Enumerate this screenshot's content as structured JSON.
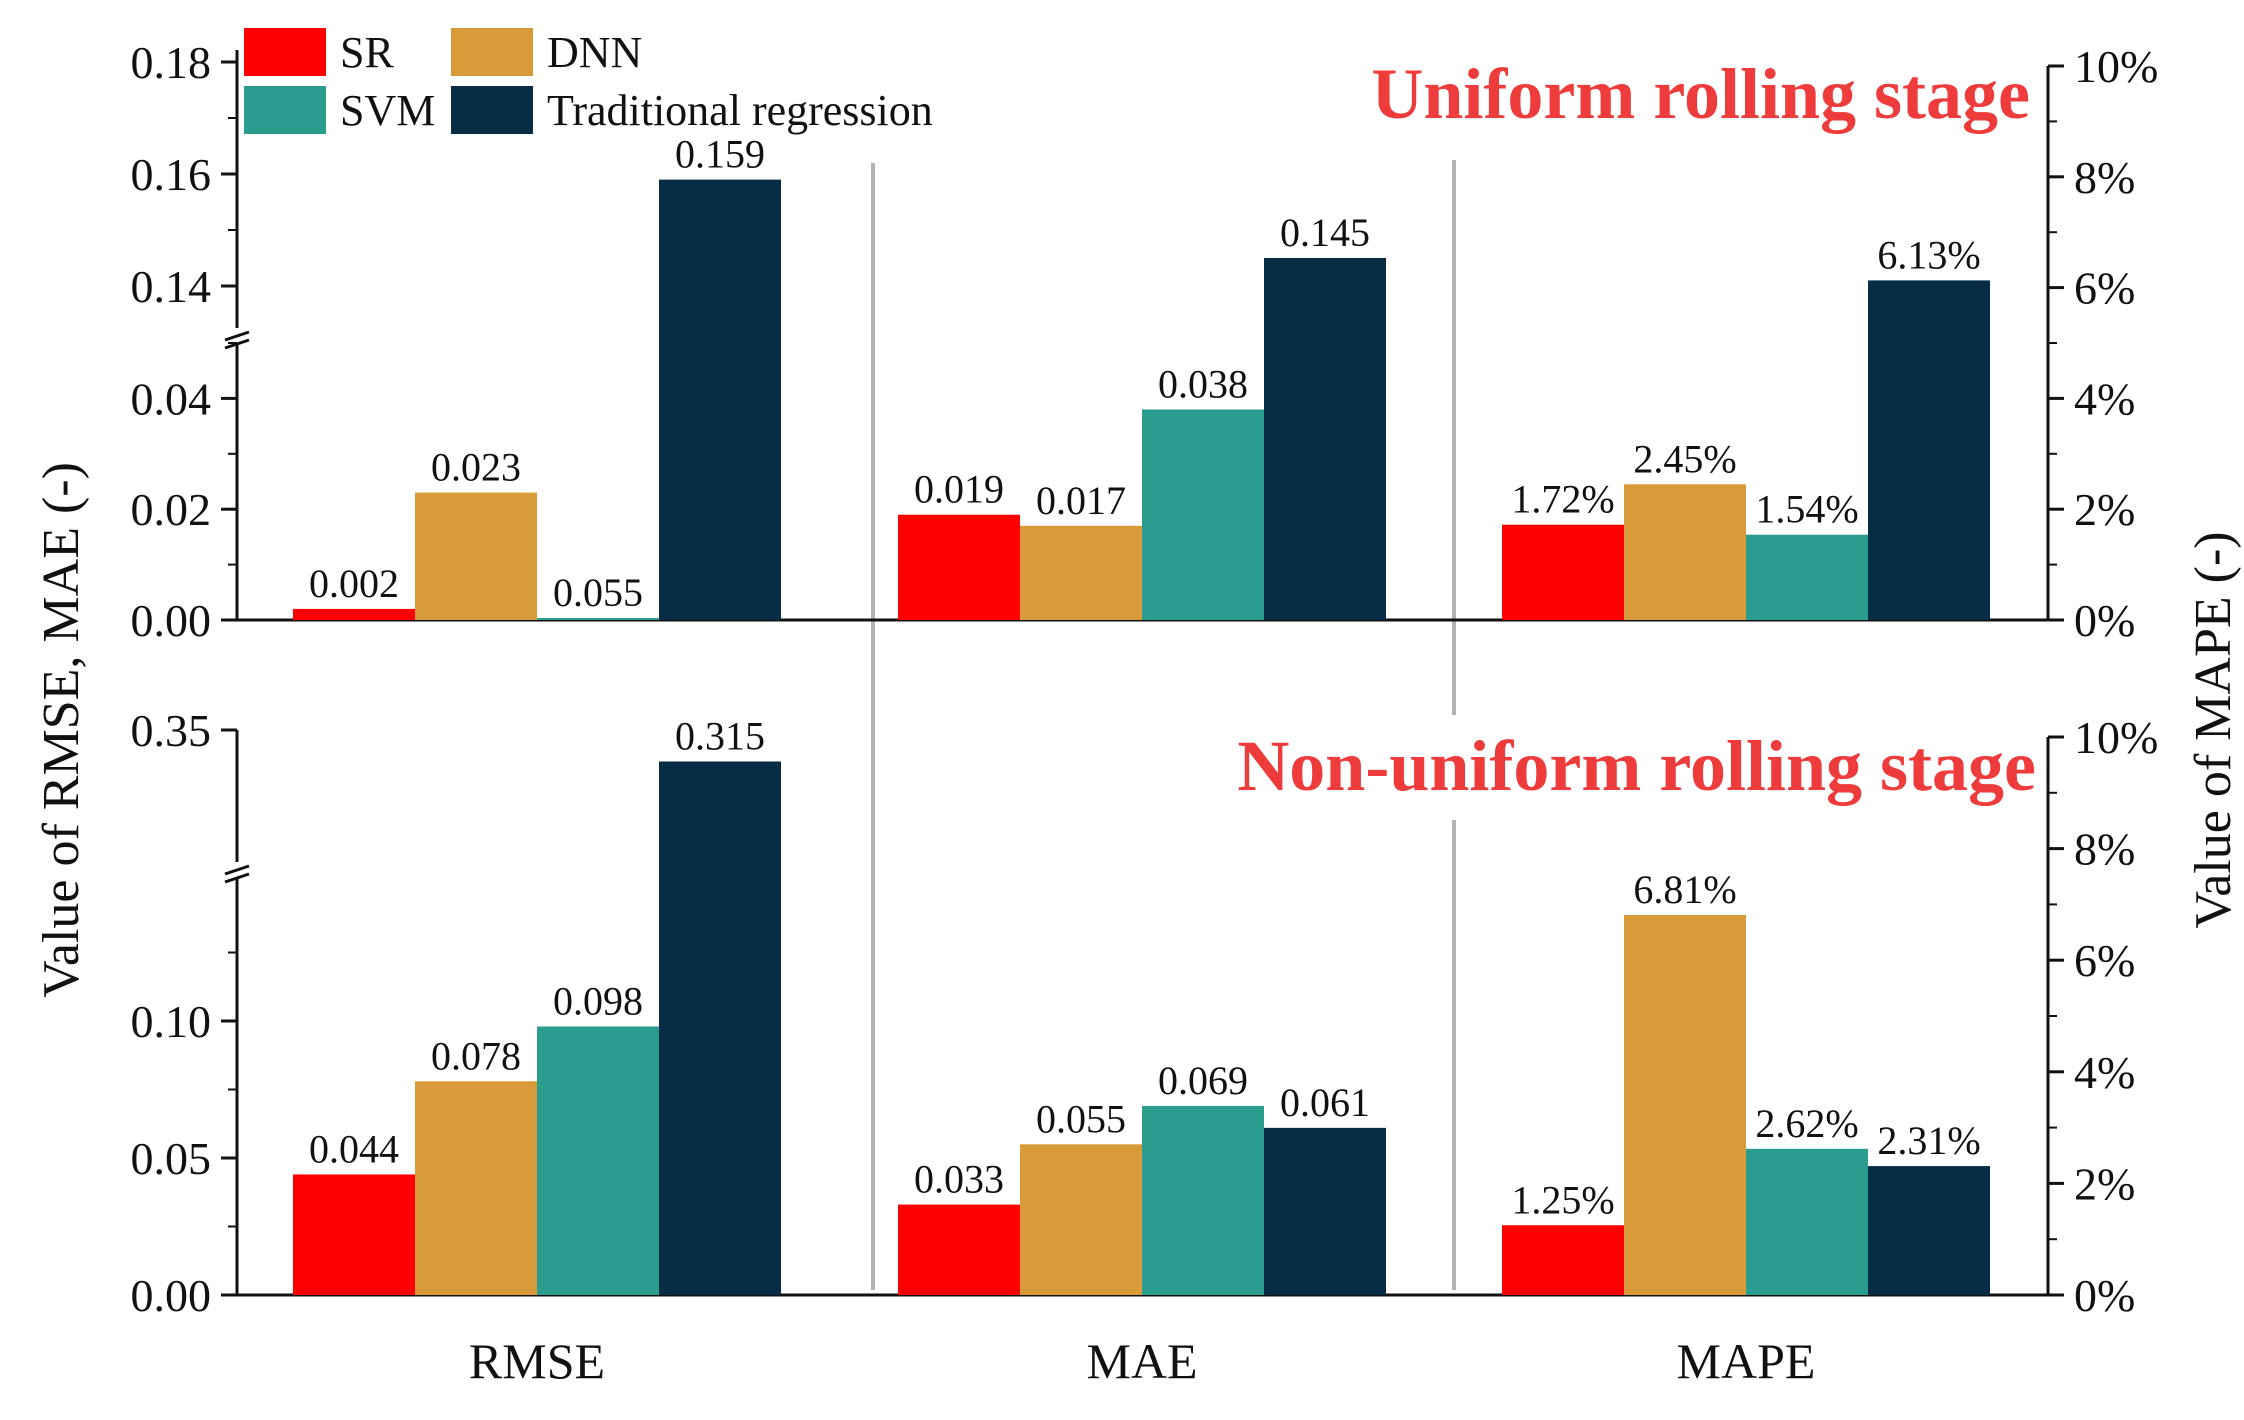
{
  "chart_data": [
    {
      "type": "bar",
      "panel": "top",
      "title": "Uniform rolling stage",
      "categories": [
        "RMSE",
        "MAE",
        "MAPE"
      ],
      "series": [
        {
          "name": "SR",
          "values": [
            0.002,
            0.019,
            1.72
          ]
        },
        {
          "name": "DNN",
          "values": [
            0.023,
            0.017,
            2.45
          ]
        },
        {
          "name": "SVM",
          "values": [
            0.055,
            0.038,
            1.54
          ]
        },
        {
          "name": "Traditional regression",
          "values": [
            0.159,
            0.145,
            6.13
          ]
        }
      ],
      "labels": [
        [
          "0.002",
          "0.019",
          "1.72%"
        ],
        [
          "0.023",
          "0.017",
          "2.45%"
        ],
        [
          "0.055",
          "0.038",
          "1.54%"
        ],
        [
          "0.159",
          "0.145",
          "6.13%"
        ]
      ],
      "left_axis": {
        "segments": [
          {
            "range": [
              0,
              0.05
            ],
            "ticks": [
              "0.00",
              "0.02",
              "0.04"
            ],
            "tick_values": [
              0,
              0.02,
              0.04
            ]
          },
          {
            "range": [
              0.13,
              0.18
            ],
            "ticks": [
              "0.14",
              "0.16",
              "0.18"
            ],
            "tick_values": [
              0.14,
              0.16,
              0.18
            ]
          }
        ],
        "break": true
      },
      "right_axis": {
        "range": [
          0,
          10
        ],
        "ticks": [
          "0%",
          "2%",
          "4%",
          "6%",
          "8%",
          "10%"
        ],
        "tick_values": [
          0,
          2,
          4,
          6,
          8,
          10
        ]
      }
    },
    {
      "type": "bar",
      "panel": "bottom",
      "title": "Non-uniform rolling stage",
      "categories": [
        "RMSE",
        "MAE",
        "MAPE"
      ],
      "series": [
        {
          "name": "SR",
          "values": [
            0.044,
            0.033,
            1.25
          ]
        },
        {
          "name": "DNN",
          "values": [
            0.078,
            0.055,
            6.81
          ]
        },
        {
          "name": "SVM",
          "values": [
            0.098,
            0.069,
            2.62
          ]
        },
        {
          "name": "Traditional regression",
          "values": [
            0.315,
            0.061,
            2.31
          ]
        }
      ],
      "labels": [
        [
          "0.044",
          "0.033",
          "1.25%"
        ],
        [
          "0.078",
          "0.055",
          "6.81%"
        ],
        [
          "0.098",
          "0.069",
          "2.62%"
        ],
        [
          "0.315",
          "0.061",
          "2.31%"
        ]
      ],
      "left_axis": {
        "segments": [
          {
            "range": [
              0,
              0.15
            ],
            "ticks": [
              "0.00",
              "0.05",
              "0.10"
            ],
            "tick_values": [
              0,
              0.05,
              0.1
            ]
          },
          {
            "range": [
              0.2,
              0.35
            ],
            "ticks": [
              "0.35"
            ],
            "tick_values": [
              0.35
            ]
          }
        ],
        "break": true
      },
      "right_axis": {
        "range": [
          0,
          10
        ],
        "ticks": [
          "0%",
          "2%",
          "4%",
          "6%",
          "8%",
          "10%"
        ],
        "tick_values": [
          0,
          2,
          4,
          6,
          8,
          10
        ]
      }
    }
  ],
  "legend": {
    "items": [
      {
        "name": "SR",
        "color": "#ff0000"
      },
      {
        "name": "DNN",
        "color": "#d99a3a"
      },
      {
        "name": "SVM",
        "color": "#2a9d8f"
      },
      {
        "name": "Traditional regression",
        "color": "#062d45"
      }
    ]
  },
  "axes": {
    "ylabel_left": "Value of  RMSE, MAE (-)",
    "ylabel_right": "Value of  MAPE (-)",
    "x_categories": [
      "RMSE",
      "MAE",
      "MAPE"
    ]
  },
  "colors": {
    "title": "#ee3b3b",
    "divider": "#b3b3b3",
    "axis": "#111111"
  }
}
